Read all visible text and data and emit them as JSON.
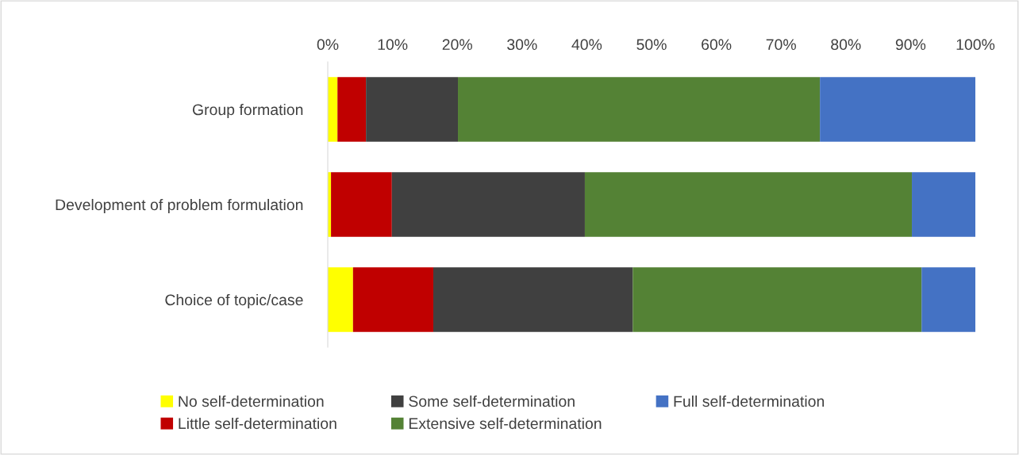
{
  "chart_data": {
    "type": "bar",
    "orientation": "horizontal",
    "stacked": true,
    "categories": [
      "Group formation",
      "Development of problem formulation",
      "Choice of topic/case"
    ],
    "series": [
      {
        "name": "No self-determination",
        "color": "#ffff00",
        "values": [
          1.5,
          0.5,
          3.9
        ]
      },
      {
        "name": "Little self-determination",
        "color": "#c00000",
        "values": [
          4.4,
          9.4,
          12.4
        ]
      },
      {
        "name": "Some self-determination",
        "color": "#404040",
        "values": [
          14.2,
          29.8,
          30.8
        ]
      },
      {
        "name": "Extensive self-determination",
        "color": "#548235",
        "values": [
          55.9,
          50.5,
          44.6
        ]
      },
      {
        "name": "Full self-determination",
        "color": "#4472c4",
        "values": [
          24.0,
          9.8,
          8.3
        ]
      }
    ],
    "xlim": [
      0,
      100
    ],
    "xticks": [
      {
        "value": 0,
        "label": "0%"
      },
      {
        "value": 10,
        "label": "10%"
      },
      {
        "value": 20,
        "label": "20%"
      },
      {
        "value": 30,
        "label": "30%"
      },
      {
        "value": 40,
        "label": "40%"
      },
      {
        "value": 50,
        "label": "50%"
      },
      {
        "value": 60,
        "label": "60%"
      },
      {
        "value": 70,
        "label": "70%"
      },
      {
        "value": 80,
        "label": "80%"
      },
      {
        "value": 90,
        "label": "90%"
      },
      {
        "value": 100,
        "label": "100%"
      }
    ],
    "grid": false,
    "legend": "bottom"
  }
}
